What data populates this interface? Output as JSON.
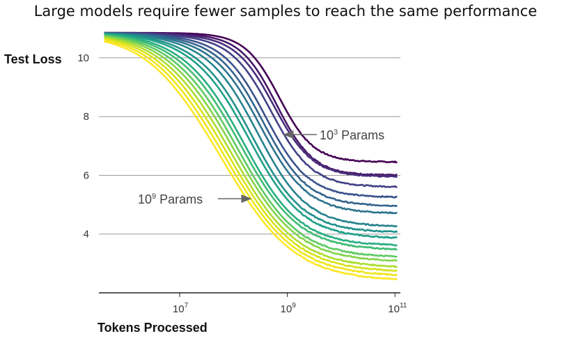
{
  "title": "Large models require fewer samples to reach the same performance",
  "chart_data": {
    "type": "line",
    "title": "Large models require fewer samples to reach the same performance",
    "xlabel": "Tokens Processed",
    "ylabel": "Test Loss",
    "x_scale": "log",
    "xlim_log10": [
      5.5,
      11.1
    ],
    "ylim": [
      2.0,
      10.9
    ],
    "grid": "horizontal",
    "y_ticks": [
      4,
      6,
      8,
      10
    ],
    "x_ticks": [
      {
        "base": "10",
        "exp": "7",
        "log10": 7
      },
      {
        "base": "10",
        "exp": "9",
        "log10": 9
      },
      {
        "base": "10",
        "exp": "11",
        "log10": 11
      }
    ],
    "annotations": [
      {
        "base": "10",
        "exp": "3",
        "suffix": " Params"
      },
      {
        "base": "10",
        "exp": "9",
        "suffix": " Params"
      }
    ],
    "series_note": "Each curve is one model size; colors run from dark purple (smallest, 10^3 params) to yellow (largest, 10^9 params).",
    "colors": [
      "#440154",
      "#48186a",
      "#472d7b",
      "#424086",
      "#3b528b",
      "#33638d",
      "#2c728e",
      "#26828e",
      "#21918c",
      "#1fa088",
      "#28ae80",
      "#3fbc73",
      "#5ec962",
      "#84d44b",
      "#addc30",
      "#d8e219",
      "#f0e51d",
      "#fde725"
    ],
    "series": [
      {
        "final": 6.45,
        "x_mid_log10": 8.85
      },
      {
        "final": 6.0,
        "x_mid_log10": 8.8
      },
      {
        "final": 5.95,
        "x_mid_log10": 8.75
      },
      {
        "final": 5.6,
        "x_mid_log10": 8.7
      },
      {
        "final": 5.25,
        "x_mid_log10": 8.6
      },
      {
        "final": 4.95,
        "x_mid_log10": 8.55
      },
      {
        "final": 4.7,
        "x_mid_log10": 8.5
      },
      {
        "final": 4.25,
        "x_mid_log10": 8.45
      },
      {
        "final": 4.05,
        "x_mid_log10": 8.35
      },
      {
        "final": 3.85,
        "x_mid_log10": 8.3
      },
      {
        "final": 3.6,
        "x_mid_log10": 8.2
      },
      {
        "final": 3.45,
        "x_mid_log10": 8.15
      },
      {
        "final": 3.2,
        "x_mid_log10": 8.1
      },
      {
        "final": 3.05,
        "x_mid_log10": 8.05
      },
      {
        "final": 2.85,
        "x_mid_log10": 8.0
      },
      {
        "final": 2.7,
        "x_mid_log10": 7.95
      },
      {
        "final": 2.55,
        "x_mid_log10": 7.9
      },
      {
        "final": 2.4,
        "x_mid_log10": 7.85
      }
    ],
    "y_start": 10.85
  }
}
